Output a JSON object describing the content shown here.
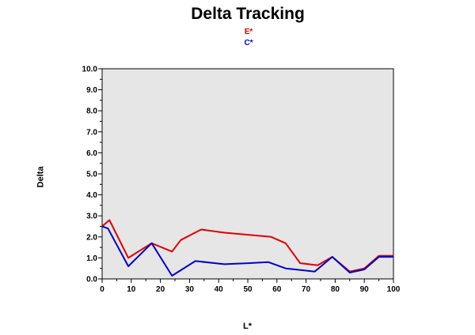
{
  "chart_data": {
    "type": "line",
    "title": "Delta Tracking",
    "xlabel": "L*",
    "ylabel": "Delta",
    "xlim": [
      0,
      100
    ],
    "ylim": [
      0,
      10
    ],
    "x_ticks": [
      "0",
      "10",
      "20",
      "30",
      "40",
      "50",
      "60",
      "70",
      "80",
      "90",
      "100"
    ],
    "y_ticks": [
      "0.0",
      "1.0",
      "2.0",
      "3.0",
      "4.0",
      "5.0",
      "6.0",
      "7.0",
      "8.0",
      "9.0",
      "10.0"
    ],
    "legend_position": "top-center",
    "grid": false,
    "plot_background": "#e6e6e6",
    "series": [
      {
        "name": "E*",
        "color": "#e00000",
        "x": [
          0,
          2.5,
          9,
          17,
          24,
          27,
          34,
          42,
          50,
          58,
          63,
          68,
          74,
          79,
          85,
          90,
          95,
          100
        ],
        "y": [
          2.5,
          2.8,
          1.0,
          1.7,
          1.3,
          1.85,
          2.35,
          2.2,
          2.1,
          2.0,
          1.7,
          0.75,
          0.65,
          1.05,
          0.35,
          0.5,
          1.1,
          1.1
        ]
      },
      {
        "name": "C*",
        "color": "#0000cc",
        "x": [
          0,
          2,
          9,
          17,
          24,
          32,
          42,
          50,
          57,
          63,
          73,
          79,
          85,
          90,
          95,
          100
        ],
        "y": [
          2.5,
          2.4,
          0.6,
          1.7,
          0.15,
          0.85,
          0.7,
          0.75,
          0.8,
          0.5,
          0.35,
          1.05,
          0.3,
          0.45,
          1.05,
          1.05
        ]
      }
    ]
  }
}
